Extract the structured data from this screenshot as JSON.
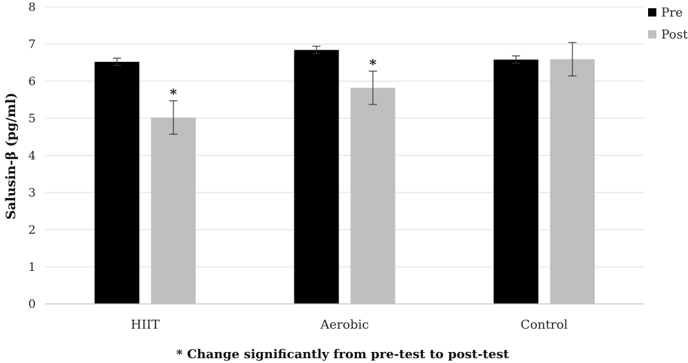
{
  "chart_data": {
    "type": "bar",
    "categories": [
      "HIIT",
      "Aerobic",
      "Control"
    ],
    "series": [
      {
        "name": "Pre",
        "color": "#000000",
        "values": [
          6.52,
          6.84,
          6.58
        ],
        "errors": [
          0.1,
          0.1,
          0.1
        ]
      },
      {
        "name": "Post",
        "color": "#bfbfbf",
        "values": [
          5.02,
          5.82,
          6.59
        ],
        "errors": [
          0.45,
          0.45,
          0.45
        ]
      }
    ],
    "significance": [
      {
        "category": "HIIT",
        "series": "Post",
        "label": "*"
      },
      {
        "category": "Aerobic",
        "series": "Post",
        "label": "*"
      }
    ],
    "xlabel": "",
    "ylabel": "Salusin-β (pg/ml)",
    "ylim": [
      0,
      8
    ],
    "yticks": [
      0,
      1,
      2,
      3,
      4,
      5,
      6,
      7,
      8
    ],
    "grid": true,
    "legend": "top-right",
    "footnote": "* Change significantly from pre-test to post-test"
  }
}
